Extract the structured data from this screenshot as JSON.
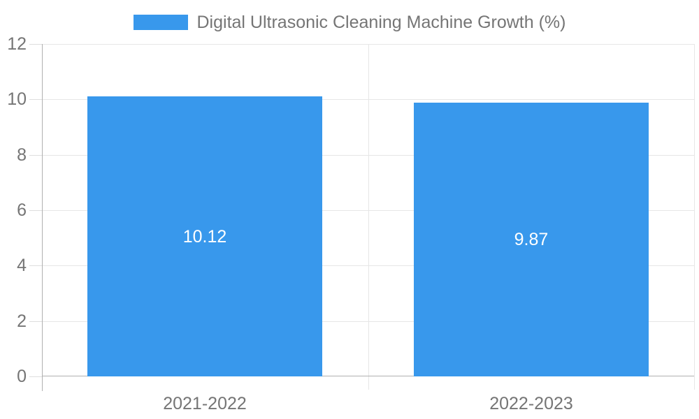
{
  "chart_data": {
    "type": "bar",
    "title": "",
    "legend_label": "Digital Ultrasonic Cleaning Machine Growth (%)",
    "legend_position": "top-center",
    "categories": [
      "2021-2022",
      "2022-2023"
    ],
    "series": [
      {
        "name": "Digital Ultrasonic Cleaning Machine Growth (%)",
        "values": [
          10.12,
          9.87
        ]
      }
    ],
    "value_labels": [
      "10.12",
      "9.87"
    ],
    "ylabel": "",
    "xlabel": "",
    "ylim": [
      0,
      12
    ],
    "yticks": [
      0,
      2,
      4,
      6,
      8,
      10,
      12
    ],
    "grid": true,
    "colors": {
      "bar": "#3898ec",
      "bar_value_text": "#ffffff",
      "label_text": "#757575",
      "gridline": "#e6e6e6",
      "tick_mark": "#dedede",
      "axis_line": "#b0b0b0"
    }
  }
}
